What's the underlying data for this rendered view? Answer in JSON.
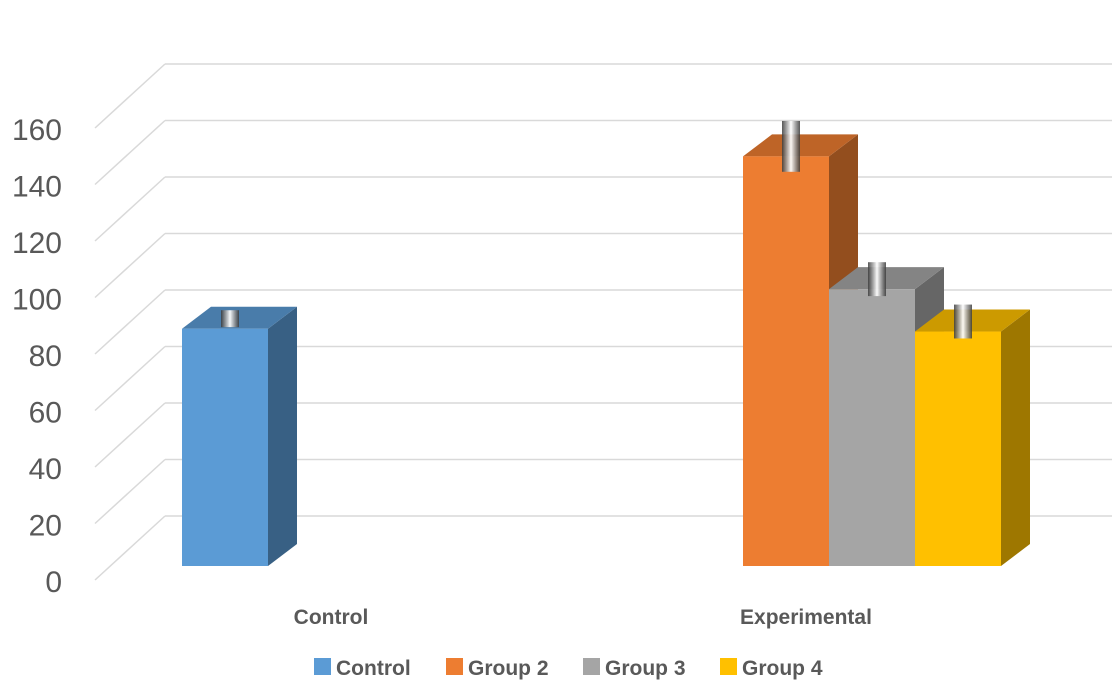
{
  "chart_data": {
    "type": "bar",
    "style": "3d-clustered-column",
    "categories": [
      "Control",
      "Experimental"
    ],
    "series": [
      {
        "name": "Control",
        "color": "#5B9BD5",
        "values": [
          84,
          null
        ],
        "error": [
          3,
          null
        ]
      },
      {
        "name": "Group 2",
        "color": "#ED7D31",
        "values": [
          null,
          145
        ],
        "error": [
          null,
          9
        ]
      },
      {
        "name": "Group 3",
        "color": "#A5A5A5",
        "values": [
          null,
          98
        ],
        "error": [
          null,
          6
        ]
      },
      {
        "name": "Group 4",
        "color": "#FFC000",
        "values": [
          null,
          83
        ],
        "error": [
          null,
          6
        ]
      }
    ],
    "ylim": [
      0,
      160
    ],
    "yticks": [
      "0",
      "20",
      "40",
      "60",
      "80",
      "100",
      "120",
      "140",
      "160"
    ],
    "grid": true,
    "legend_position": "bottom",
    "title": "",
    "xlabel": "",
    "ylabel": ""
  }
}
